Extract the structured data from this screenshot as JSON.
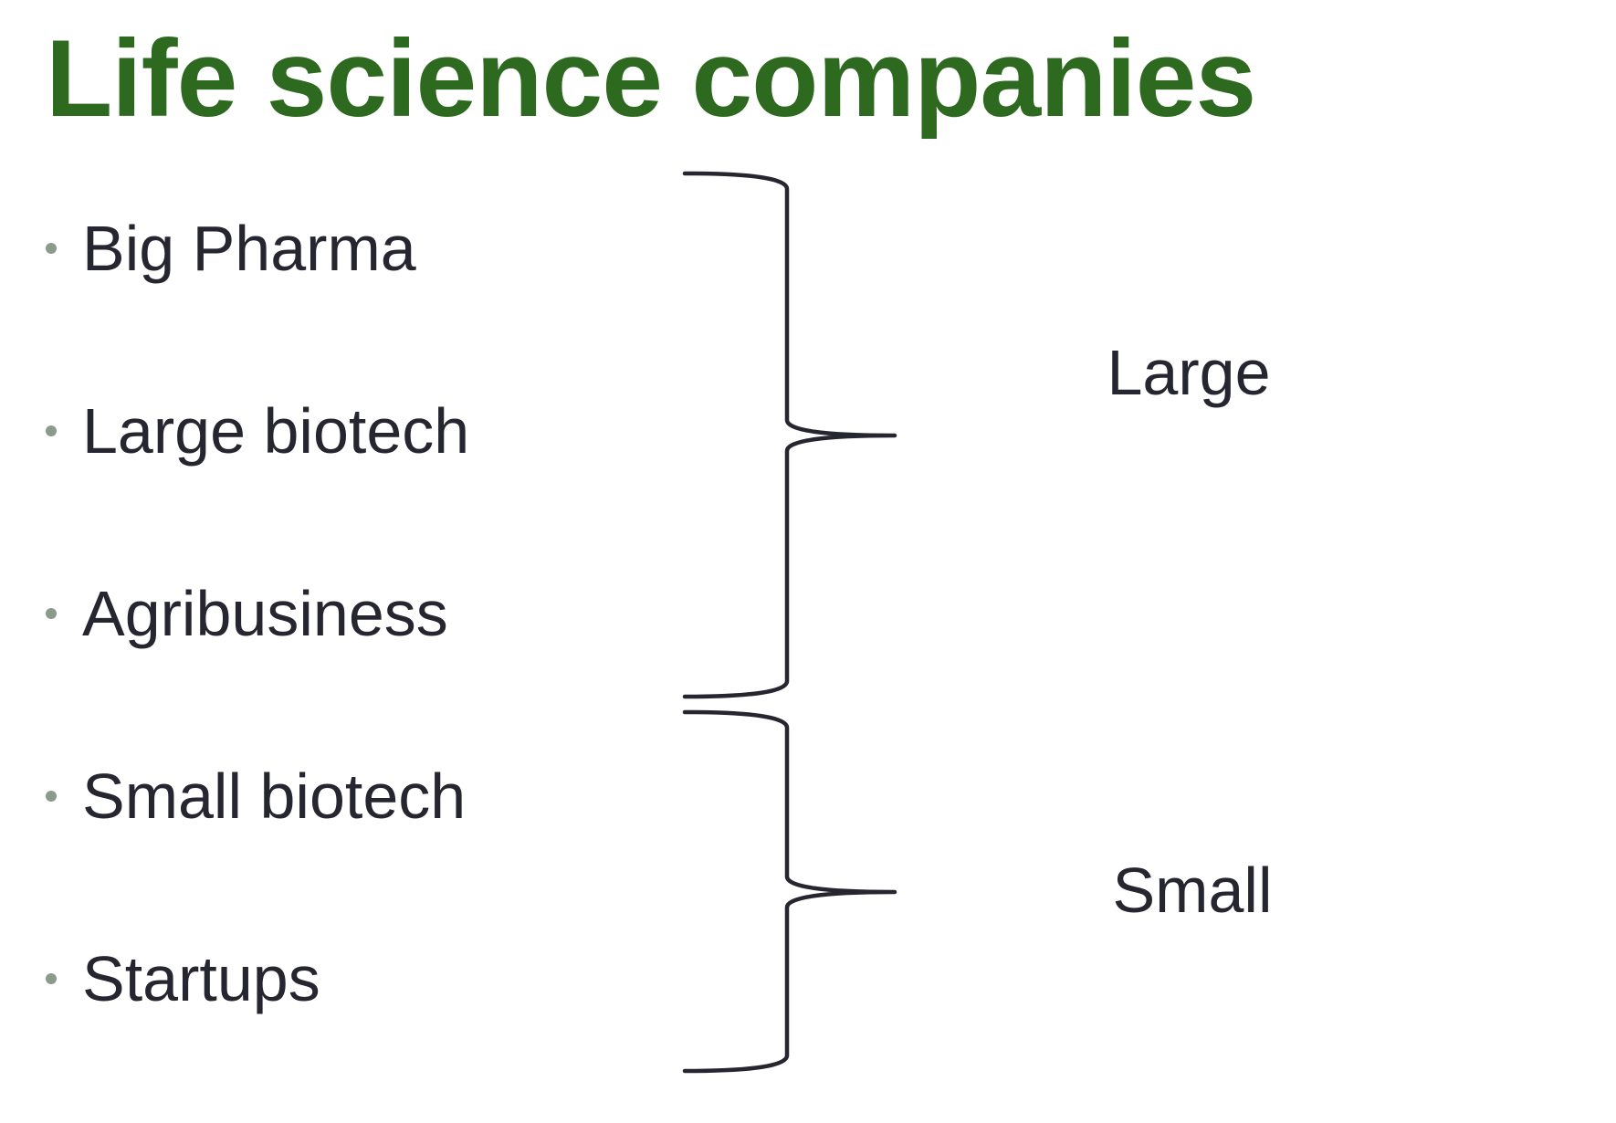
{
  "title": "Life science companies",
  "items": [
    {
      "label": "Big Pharma"
    },
    {
      "label": "Large biotech"
    },
    {
      "label": "Agribusiness"
    },
    {
      "label": "Small biotech"
    },
    {
      "label": "Startups"
    }
  ],
  "groups": [
    {
      "label": "Large"
    },
    {
      "label": "Small"
    }
  ],
  "colors": {
    "title": "#2d6a1f",
    "text": "#262630",
    "bullet": "#8c9a8c",
    "brace": "#262630"
  }
}
